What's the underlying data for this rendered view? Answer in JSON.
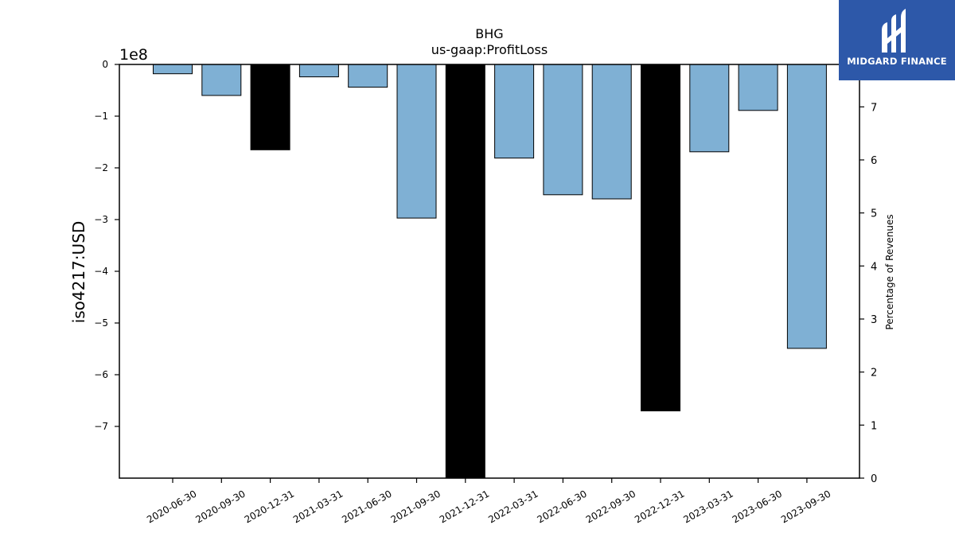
{
  "logo": {
    "text": "MIDGARD FINANCE"
  },
  "chart_data": {
    "type": "bar",
    "title": "BHG",
    "subtitle": "us-gaap:ProfitLoss",
    "ylabel": "iso4217:USD",
    "y_scale_label": "1e8",
    "y2label": "Percentage of Revenues",
    "ylim": [
      -8.0,
      0
    ],
    "y2lim": [
      0,
      7.8
    ],
    "yticks": [
      0,
      -1,
      -2,
      -3,
      -4,
      -5,
      -6,
      -7
    ],
    "ytick_labels": [
      "0",
      "−1",
      "−2",
      "−3",
      "−4",
      "−5",
      "−6",
      "−7"
    ],
    "y2ticks": [
      0,
      1,
      2,
      3,
      4,
      5,
      6,
      7
    ],
    "y2tick_labels": [
      "0",
      "1",
      "2",
      "3",
      "4",
      "5",
      "6",
      "7"
    ],
    "categories": [
      "2020-06-30",
      "2020-09-30",
      "2020-12-31",
      "2021-03-31",
      "2021-06-30",
      "2021-09-30",
      "2021-12-31",
      "2022-03-31",
      "2022-06-30",
      "2022-09-30",
      "2022-12-31",
      "2023-03-31",
      "2023-06-30",
      "2023-09-30"
    ],
    "values": [
      -0.18,
      -0.6,
      -1.65,
      -0.24,
      -0.44,
      -2.97,
      -8.0,
      -1.81,
      -2.52,
      -2.6,
      -6.7,
      -1.69,
      -0.89,
      -5.49
    ],
    "colors": [
      "#7fb0d4",
      "#7fb0d4",
      "#000000",
      "#7fb0d4",
      "#7fb0d4",
      "#7fb0d4",
      "#000000",
      "#7fb0d4",
      "#7fb0d4",
      "#7fb0d4",
      "#000000",
      "#7fb0d4",
      "#7fb0d4",
      "#7fb0d4"
    ]
  }
}
